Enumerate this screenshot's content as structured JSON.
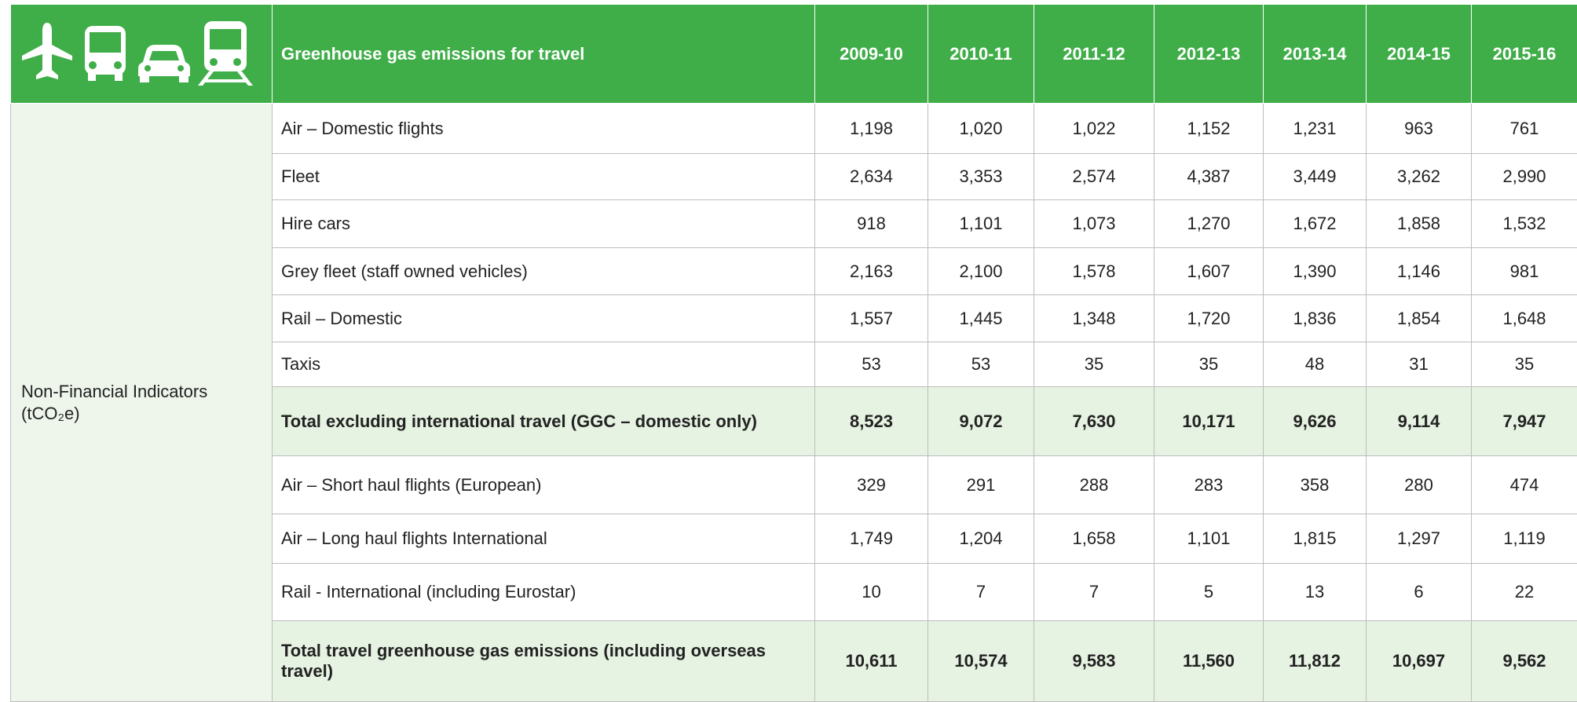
{
  "header": {
    "title": "Greenhouse gas emissions for travel",
    "years": [
      "2009-10",
      "2010-11",
      "2011-12",
      "2012-13",
      "2013-14",
      "2014-15",
      "2015-16"
    ]
  },
  "row_group": {
    "label": "Non-Financial Indicators",
    "unit": "(tCO₂e)"
  },
  "rows": [
    {
      "label": "Air – Domestic flights",
      "values": [
        "1,198",
        "1,020",
        "1,022",
        "1,152",
        "1,231",
        "963",
        "761"
      ]
    },
    {
      "label": "Fleet",
      "values": [
        "2,634",
        "3,353",
        "2,574",
        "4,387",
        "3,449",
        "3,262",
        "2,990"
      ]
    },
    {
      "label": "Hire cars",
      "values": [
        "918",
        "1,101",
        "1,073",
        "1,270",
        "1,672",
        "1,858",
        "1,532"
      ]
    },
    {
      "label": "Grey fleet (staff owned vehicles)",
      "values": [
        "2,163",
        "2,100",
        "1,578",
        "1,607",
        "1,390",
        "1,146",
        "981"
      ]
    },
    {
      "label": "Rail – Domestic",
      "values": [
        "1,557",
        "1,445",
        "1,348",
        "1,720",
        "1,836",
        "1,854",
        "1,648"
      ]
    },
    {
      "label": "Taxis",
      "values": [
        "53",
        "53",
        "35",
        "35",
        "48",
        "31",
        "35"
      ]
    },
    {
      "label": "Total excluding international travel (GGC – domestic only)",
      "values": [
        "8,523",
        "9,072",
        "7,630",
        "10,171",
        "9,626",
        "9,114",
        "7,947"
      ],
      "total": true
    },
    {
      "label": "Air – Short haul flights (European)",
      "values": [
        "329",
        "291",
        "288",
        "283",
        "358",
        "280",
        "474"
      ]
    },
    {
      "label": "Air – Long haul flights International",
      "values": [
        "1,749",
        "1,204",
        "1,658",
        "1,101",
        "1,815",
        "1,297",
        "1,119"
      ]
    },
    {
      "label": "Rail - International (including Eurostar)",
      "values": [
        "10",
        "7",
        "7",
        "5",
        "13",
        "6",
        "22"
      ]
    },
    {
      "label": "Total travel greenhouse gas emissions (including overseas travel)",
      "values": [
        "10,611",
        "10,574",
        "9,583",
        "11,560",
        "11,812",
        "10,697",
        "9,562"
      ],
      "total": true
    }
  ]
}
